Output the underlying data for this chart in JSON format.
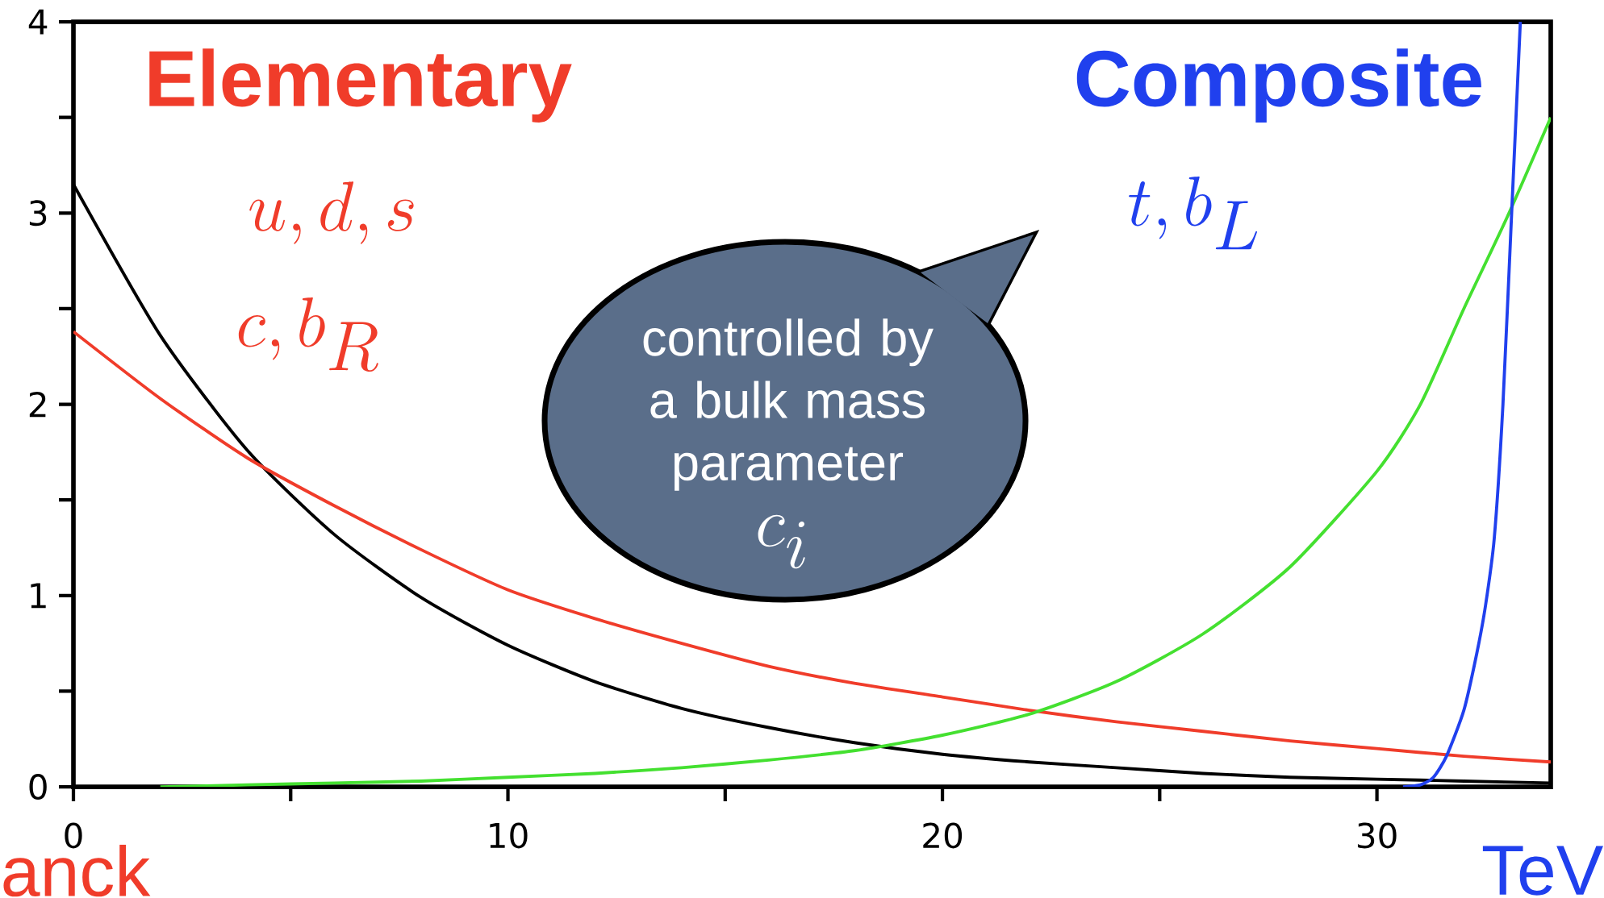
{
  "chart_data": {
    "type": "line",
    "xlim": [
      0,
      34
    ],
    "ylim": [
      0,
      4
    ],
    "xticks": [
      0,
      10,
      20,
      30
    ],
    "yticks": [
      0,
      1,
      2,
      3,
      4
    ],
    "grid": false,
    "series": [
      {
        "color": "#000000",
        "x": [
          0,
          2,
          4,
          6,
          8,
          10,
          12,
          14,
          16,
          18,
          20,
          22,
          24,
          26,
          28,
          30,
          32,
          34
        ],
        "values": [
          3.15,
          2.36,
          1.76,
          1.32,
          0.99,
          0.74,
          0.55,
          0.41,
          0.31,
          0.23,
          0.17,
          0.13,
          0.1,
          0.07,
          0.05,
          0.04,
          0.03,
          0.02
        ]
      },
      {
        "color": "#f03c2a",
        "x": [
          0,
          2,
          4,
          6,
          8,
          10,
          12,
          14,
          16,
          18,
          20,
          22,
          24,
          26,
          28,
          30,
          32,
          34
        ],
        "values": [
          2.38,
          2.03,
          1.72,
          1.47,
          1.24,
          1.03,
          0.88,
          0.75,
          0.63,
          0.54,
          0.47,
          0.4,
          0.34,
          0.29,
          0.24,
          0.2,
          0.16,
          0.13
        ]
      },
      {
        "color": "#44e030",
        "x": [
          2,
          4,
          6,
          8,
          10,
          12,
          14,
          16,
          18,
          20,
          22,
          24,
          26,
          28,
          30,
          31,
          32,
          33,
          34
        ],
        "values": [
          0.0,
          0.01,
          0.02,
          0.03,
          0.05,
          0.07,
          0.1,
          0.14,
          0.19,
          0.27,
          0.38,
          0.55,
          0.8,
          1.15,
          1.65,
          2.0,
          2.5,
          2.98,
          3.5
        ]
      },
      {
        "color": "#2040ee",
        "x": [
          30.6,
          31,
          31.3,
          31.6,
          32,
          32.3,
          32.5,
          32.7,
          32.9,
          33.1,
          33.3
        ],
        "values": [
          0,
          0.01,
          0.05,
          0.16,
          0.4,
          0.7,
          0.95,
          1.3,
          2.0,
          3.0,
          4.0
        ]
      }
    ],
    "annotations": [
      "Elementary",
      "u, d, s",
      "c, b_R",
      "Composite",
      "t, b_L",
      "controlled by a bulk mass parameter",
      "c_i",
      "anck",
      "TeV"
    ]
  }
}
